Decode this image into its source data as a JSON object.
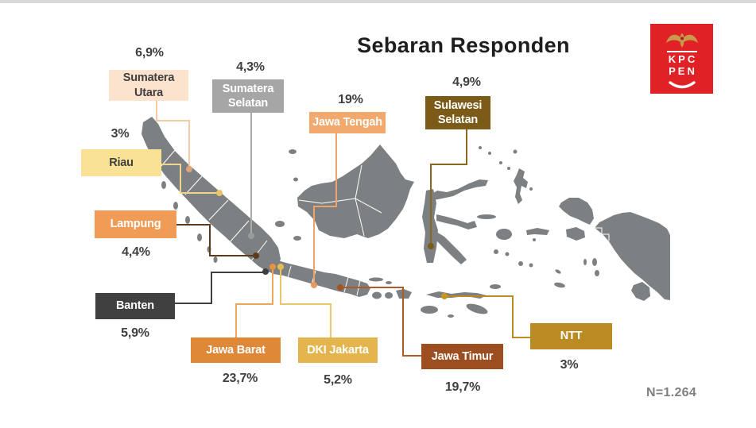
{
  "page": {
    "title": "Sebaran Responden",
    "sample_note": "N=1.264"
  },
  "logo": {
    "line1": "KPC",
    "line2": "PEN",
    "bg_color": "#e02227",
    "emblem": "garuda-icon"
  },
  "map": {
    "country": "Indonesia",
    "island_color": "#7d8082",
    "border_color": "#ffffff"
  },
  "regions": [
    {
      "id": "sumut",
      "name": "Sumatera Utara",
      "value": "6,9%",
      "box_color": "#FBE3CD",
      "text_color": "#3F3F40",
      "line_color": "#F5CBA4",
      "dot_color": "#E2A474"
    },
    {
      "id": "sumsel",
      "name": "Sumatera Selatan",
      "value": "4,3%",
      "box_color": "#A6A6A6",
      "text_color": "#FFFFFF",
      "line_color": "#ABABAB",
      "dot_color": "#9B9B9D"
    },
    {
      "id": "riau",
      "name": "Riau",
      "value": "3%",
      "box_color": "#F9E195",
      "text_color": "#3F3F40",
      "line_color": "#EFD68C",
      "dot_color": "#E9C469"
    },
    {
      "id": "lampung",
      "name": "Lampung",
      "value": "4,4%",
      "box_color": "#F09B56",
      "text_color": "#FFFFFF",
      "line_color": "#5E3A1E",
      "dot_color": "#5E3A1E"
    },
    {
      "id": "banten",
      "name": "Banten",
      "value": "5,9%",
      "box_color": "#404040",
      "text_color": "#FFFFFF",
      "line_color": "#3F3F40",
      "dot_color": "#3F3F40"
    },
    {
      "id": "jabar",
      "name": "Jawa Barat",
      "value": "23,7%",
      "box_color": "#DE8838",
      "text_color": "#FFFFFF",
      "line_color": "#F0A45C",
      "dot_color": "#E8913F"
    },
    {
      "id": "dki",
      "name": "DKI Jakarta",
      "value": "5,2%",
      "box_color": "#E4B54D",
      "text_color": "#FFFFFF",
      "line_color": "#EAC766",
      "dot_color": "#E6BC52"
    },
    {
      "id": "jateng",
      "name": "Jawa Tengah",
      "value": "19%",
      "box_color": "#F2A96E",
      "text_color": "#FFFFFF",
      "line_color": "#EFA368",
      "dot_color": "#E8995B"
    },
    {
      "id": "jatim",
      "name": "Jawa Timur",
      "value": "19,7%",
      "box_color": "#9C4E21",
      "text_color": "#FFFFFF",
      "line_color": "#AF5B28",
      "dot_color": "#A55423"
    },
    {
      "id": "sulsel",
      "name": "Sulawesi Selatan",
      "value": "4,9%",
      "box_color": "#7C5A17",
      "text_color": "#FFFFFF",
      "line_color": "#8A6820",
      "dot_color": "#7C5A17"
    },
    {
      "id": "ntt",
      "name": "NTT",
      "value": "3%",
      "box_color": "#BA8B22",
      "text_color": "#FFFFFF",
      "line_color": "#BA8B22",
      "dot_color": "#C9971F"
    }
  ],
  "chart_data": {
    "type": "map",
    "title": "Sebaran Responden",
    "map": "Indonesia",
    "categories": [
      "Sumatera Utara",
      "Sumatera Selatan",
      "Riau",
      "Lampung",
      "Banten",
      "Jawa Barat",
      "DKI Jakarta",
      "Jawa Tengah",
      "Jawa Timur",
      "Sulawesi Selatan",
      "NTT"
    ],
    "values": [
      6.9,
      4.3,
      3,
      4.4,
      5.9,
      23.7,
      5.2,
      19,
      19.7,
      4.9,
      3
    ],
    "unit": "%",
    "sample_size": "N=1.264",
    "legend_position": "none",
    "annotation_style": "callout-labels"
  }
}
